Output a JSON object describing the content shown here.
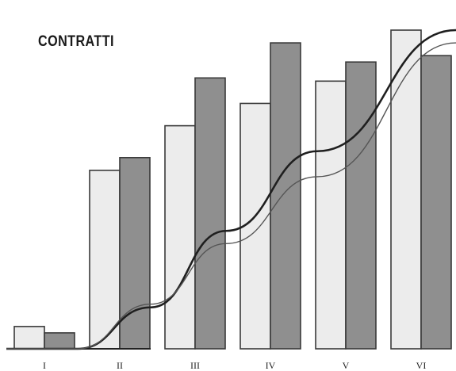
{
  "chart_data": {
    "type": "bar",
    "title": "CONTRATTI",
    "xlabel": "",
    "ylabel": "",
    "categories": [
      "I",
      "II",
      "III",
      "IV",
      "V",
      "VI"
    ],
    "series": [
      {
        "values": [
          7,
          56,
          70,
          77,
          84,
          100
        ]
      },
      {
        "values": [
          5,
          60,
          85,
          96,
          90,
          92
        ]
      }
    ],
    "lines": [
      {
        "values": [
          0,
          0,
          13,
          37,
          62,
          100
        ]
      },
      {
        "values": [
          0,
          0,
          14,
          33,
          54,
          96
        ]
      }
    ],
    "ylim": [
      0,
      100
    ],
    "grid": false,
    "colors": {
      "bar_light": "#ececec",
      "bar_dark": "#8f8f8f",
      "bar_edge": "#3a3a3a",
      "line_thick": "#1f1f1f",
      "line_thin": "#555555",
      "baseline": "#222222"
    }
  }
}
